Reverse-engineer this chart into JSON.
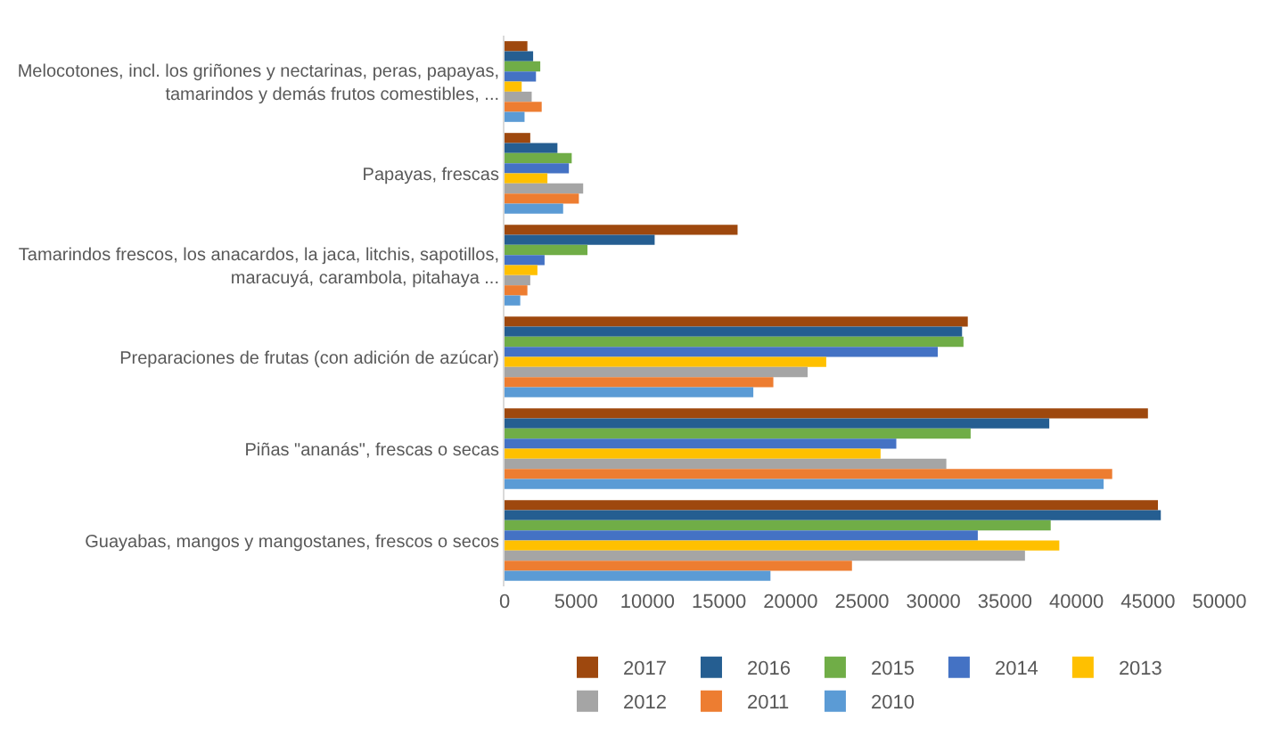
{
  "chart_data": {
    "type": "bar",
    "orientation": "horizontal",
    "categories": [
      "Melocotones, incl. los griñones y nectarinas, peras, papayas, tamarindos y demás frutos comestibles, ...",
      "Papayas, frescas",
      "Tamarindos frescos, los anacardos, la jaca, litchis, sapotillos, maracuyá, carambola, pitahaya ...",
      "Preparaciones de frutas (con adición de azúcar)",
      "Piñas \"ananás\", frescas o secas",
      "Guayabas, mangos y mangostanes, frescos o secos"
    ],
    "series": [
      {
        "name": "2017",
        "color": "#9e480e",
        "values": [
          1600,
          1800,
          16300,
          32400,
          45000,
          45700
        ]
      },
      {
        "name": "2016",
        "color": "#255e91",
        "values": [
          2000,
          3700,
          10500,
          32000,
          38100,
          45900
        ]
      },
      {
        "name": "2015",
        "color": "#70ad47",
        "values": [
          2500,
          4700,
          5800,
          32100,
          32600,
          38200
        ]
      },
      {
        "name": "2014",
        "color": "#4472c4",
        "values": [
          2200,
          4500,
          2800,
          30300,
          27400,
          33100
        ]
      },
      {
        "name": "2013",
        "color": "#ffc000",
        "values": [
          1200,
          3000,
          2300,
          22500,
          26300,
          38800
        ]
      },
      {
        "name": "2012",
        "color": "#a5a5a5",
        "values": [
          1900,
          5500,
          1800,
          21200,
          30900,
          36400
        ]
      },
      {
        "name": "2011",
        "color": "#ed7d31",
        "values": [
          2600,
          5200,
          1600,
          18800,
          42500,
          24300
        ]
      },
      {
        "name": "2010",
        "color": "#5b9bd5",
        "values": [
          1400,
          4100,
          1100,
          17400,
          41900,
          18600
        ]
      }
    ],
    "xlim": [
      0,
      50000
    ],
    "xticks": [
      0,
      5000,
      10000,
      15000,
      20000,
      25000,
      30000,
      35000,
      40000,
      45000,
      50000
    ],
    "grid": false,
    "legend": "bottom"
  }
}
